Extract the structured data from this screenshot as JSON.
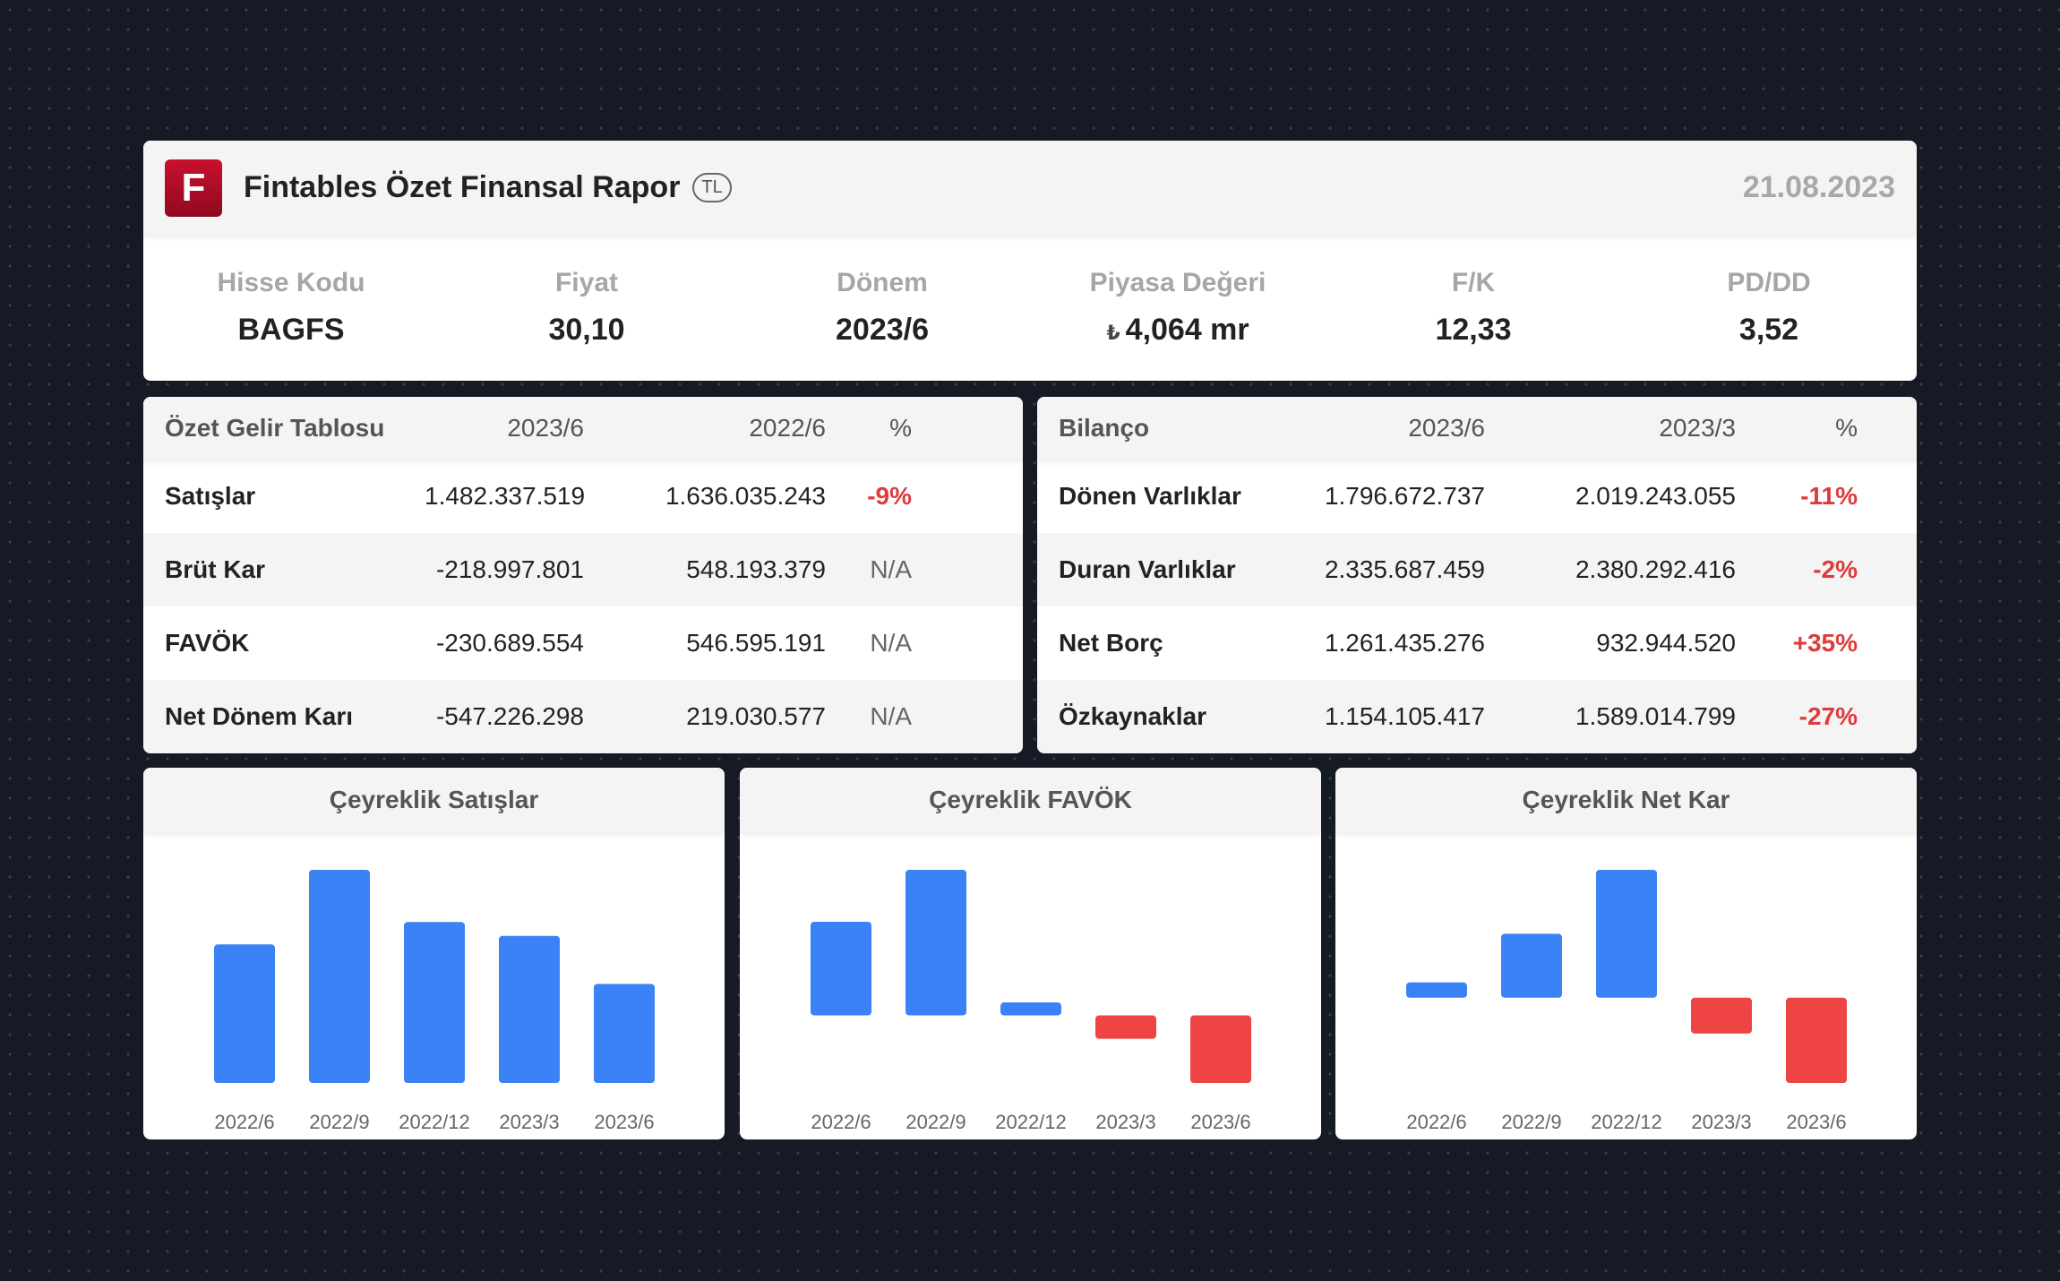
{
  "header": {
    "logo_letter": "F",
    "title": "Fintables Özet Finansal Rapor",
    "currency": "TL",
    "date": "21.08.2023"
  },
  "stats": [
    {
      "label": "Hisse Kodu",
      "value": "BAGFS"
    },
    {
      "label": "Fiyat",
      "value": "30,10"
    },
    {
      "label": "Dönem",
      "value": "2023/6"
    },
    {
      "label": "Piyasa Değeri",
      "prefix": "₺",
      "value": "4,064 mr"
    },
    {
      "label": "F/K",
      "value": "12,33"
    },
    {
      "label": "PD/DD",
      "value": "3,52"
    }
  ],
  "income": {
    "headers": [
      "Özet Gelir Tablosu",
      "2023/6",
      "2022/6",
      "%"
    ],
    "rows": [
      {
        "name": "Satışlar",
        "a": "1.482.337.519",
        "b": "1.636.035.243",
        "pct": "-9%"
      },
      {
        "name": "Brüt Kar",
        "a": "-218.997.801",
        "b": "548.193.379",
        "pct": "N/A"
      },
      {
        "name": "FAVÖK",
        "a": "-230.689.554",
        "b": "546.595.191",
        "pct": "N/A"
      },
      {
        "name": "Net Dönem Karı",
        "a": "-547.226.298",
        "b": "219.030.577",
        "pct": "N/A"
      }
    ]
  },
  "balance": {
    "headers": [
      "Bilanço",
      "2023/6",
      "2023/3",
      "%"
    ],
    "rows": [
      {
        "name": "Dönen Varlıklar",
        "a": "1.796.672.737",
        "b": "2.019.243.055",
        "pct": "-11%"
      },
      {
        "name": "Duran Varlıklar",
        "a": "2.335.687.459",
        "b": "2.380.292.416",
        "pct": "-2%"
      },
      {
        "name": "Net Borç",
        "a": "1.261.435.276",
        "b": "932.944.520",
        "pct": "+35%"
      },
      {
        "name": "Özkaynaklar",
        "a": "1.154.105.417",
        "b": "1.589.014.799",
        "pct": "-27%"
      }
    ]
  },
  "colors": {
    "positive": "#3b82f6",
    "negative": "#ef4444",
    "brand": "#c8102e"
  },
  "chart_data": [
    {
      "type": "bar",
      "title": "Çeyreklik Satışlar",
      "categories": [
        "2022/6",
        "2022/9",
        "2022/12",
        "2023/3",
        "2023/6"
      ],
      "values": [
        650,
        1000,
        755,
        690,
        465
      ]
    },
    {
      "type": "bar",
      "title": "Çeyreklik FAVÖK",
      "categories": [
        "2022/6",
        "2022/9",
        "2022/12",
        "2023/3",
        "2023/6"
      ],
      "values": [
        72,
        112,
        10,
        -18,
        -52
      ]
    },
    {
      "type": "bar",
      "title": "Çeyreklik Net Kar",
      "categories": [
        "2022/6",
        "2022/9",
        "2022/12",
        "2023/3",
        "2023/6"
      ],
      "values": [
        18,
        75,
        150,
        -42,
        -100
      ]
    }
  ]
}
